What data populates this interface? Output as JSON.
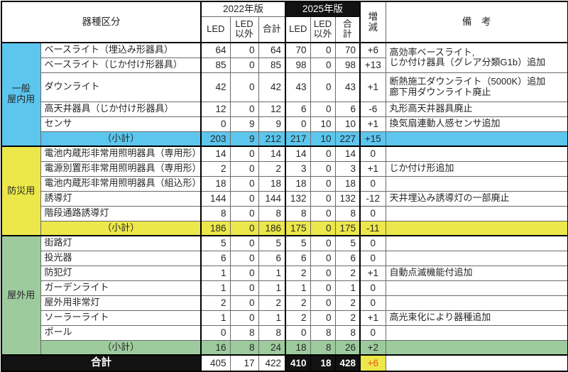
{
  "table": {
    "header": {
      "category_label": "器種区分",
      "col_2022": "2022年版",
      "col_2025": "2025年版",
      "sub_cols": [
        "LED",
        "LED\n以外",
        "合計"
      ],
      "change_label": "増減",
      "remarks_label": "備　考"
    },
    "groups": [
      {
        "name": "一般\n屋内用",
        "color": "#5cc6ee",
        "rows": [
          {
            "item": "ベースライト（埋込み形器具）",
            "v2022": [
              64,
              0,
              64
            ],
            "v2025": [
              70,
              0,
              70
            ],
            "change": "+6",
            "remark": "高効率ベースライト,\nじか付け器具（グレア分類G1b）追加",
            "remark_rowspan": 2
          },
          {
            "item": "ベースライト（じか付け形器具）",
            "v2022": [
              85,
              0,
              85
            ],
            "v2025": [
              98,
              0,
              98
            ],
            "change": "+13",
            "remark_merged": true
          },
          {
            "item": "ダウンライト",
            "v2022": [
              42,
              0,
              42
            ],
            "v2025": [
              43,
              0,
              43
            ],
            "change": "+1",
            "remark": "断熱施工ダウンライト（5000K）追加\n廊下用ダウンライト廃止",
            "tall": true
          },
          {
            "item": "高天井器具（じか付け形器具）",
            "v2022": [
              12,
              0,
              12
            ],
            "v2025": [
              6,
              0,
              6
            ],
            "change": "-6",
            "remark": "丸形高天井器具廃止"
          },
          {
            "item": "センサ",
            "v2022": [
              0,
              9,
              9
            ],
            "v2025": [
              0,
              10,
              10
            ],
            "change": "+1",
            "remark": "換気扇連動人感センサ追加"
          }
        ],
        "subtotal": {
          "label": "（小計）",
          "v2022": [
            203,
            9,
            212
          ],
          "v2025": [
            217,
            10,
            227
          ],
          "change": "+15",
          "remark": ""
        }
      },
      {
        "name": "防災用",
        "color": "#ece74a",
        "rows": [
          {
            "item": "電池内蔵形非常用照明器具（専用形）",
            "v2022": [
              14,
              0,
              14
            ],
            "v2025": [
              14,
              0,
              14
            ],
            "change": "0",
            "remark": ""
          },
          {
            "item": "電源別置形非常用照明器具（専用形）",
            "v2022": [
              2,
              0,
              2
            ],
            "v2025": [
              3,
              0,
              3
            ],
            "change": "+1",
            "remark": "じか付け形追加"
          },
          {
            "item": "電池内蔵形非常用照明器具（組込形）",
            "v2022": [
              18,
              0,
              18
            ],
            "v2025": [
              18,
              0,
              18
            ],
            "change": "0",
            "remark": ""
          },
          {
            "item": "誘導灯",
            "v2022": [
              144,
              0,
              144
            ],
            "v2025": [
              132,
              0,
              132
            ],
            "change": "-12",
            "remark": "天井埋込み誘導灯の一部廃止"
          },
          {
            "item": "階段通路誘導灯",
            "v2022": [
              8,
              0,
              8
            ],
            "v2025": [
              8,
              0,
              8
            ],
            "change": "0",
            "remark": ""
          }
        ],
        "subtotal": {
          "label": "（小計）",
          "v2022": [
            186,
            0,
            186
          ],
          "v2025": [
            175,
            0,
            175
          ],
          "change": "-11",
          "remark": ""
        }
      },
      {
        "name": "屋外用",
        "color": "#9dcb9d",
        "rows": [
          {
            "item": "街路灯",
            "v2022": [
              5,
              0,
              5
            ],
            "v2025": [
              5,
              0,
              5
            ],
            "change": "0",
            "remark": ""
          },
          {
            "item": "投光器",
            "v2022": [
              6,
              0,
              6
            ],
            "v2025": [
              6,
              0,
              6
            ],
            "change": "0",
            "remark": ""
          },
          {
            "item": "防犯灯",
            "v2022": [
              1,
              0,
              1
            ],
            "v2025": [
              2,
              0,
              2
            ],
            "change": "+1",
            "remark": "自動点滅機能付追加"
          },
          {
            "item": "ガーデンライト",
            "v2022": [
              1,
              0,
              1
            ],
            "v2025": [
              1,
              0,
              1
            ],
            "change": "0",
            "remark": ""
          },
          {
            "item": "屋外用非常灯",
            "v2022": [
              2,
              0,
              2
            ],
            "v2025": [
              2,
              0,
              2
            ],
            "change": "0",
            "remark": ""
          },
          {
            "item": "ソーラーライト",
            "v2022": [
              1,
              0,
              1
            ],
            "v2025": [
              2,
              0,
              2
            ],
            "change": "+1",
            "remark": "高光束化により器種追加"
          },
          {
            "item": "ポール",
            "v2022": [
              0,
              8,
              8
            ],
            "v2025": [
              0,
              8,
              8
            ],
            "change": "0",
            "remark": ""
          }
        ],
        "subtotal": {
          "label": "（小計）",
          "v2022": [
            16,
            8,
            24
          ],
          "v2025": [
            18,
            8,
            26
          ],
          "change": "+2",
          "remark": ""
        }
      }
    ],
    "total": {
      "label": "合計",
      "v2022": [
        405,
        17,
        422
      ],
      "v2025": [
        410,
        18,
        428
      ],
      "change": "+6",
      "remark": ""
    },
    "colors": {
      "group_general": "#5cc6ee",
      "group_disaster": "#ece74a",
      "group_outdoor": "#9dcb9d",
      "edition_2025_bg": "#121212",
      "total_change_bg": "#ece74a",
      "total_change_text": "#ea5514"
    }
  }
}
